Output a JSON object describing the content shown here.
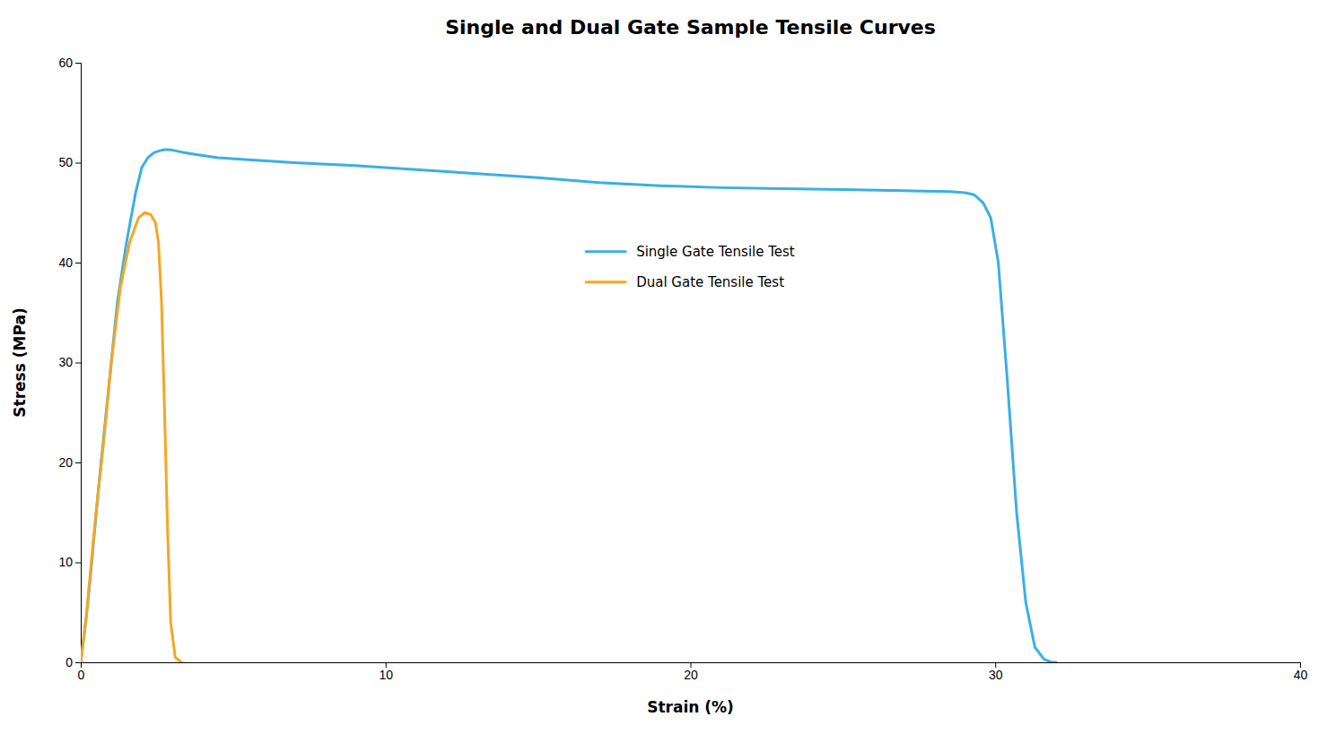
{
  "chart_data": {
    "type": "line",
    "title": "Single and Dual Gate Sample Tensile Curves",
    "xlabel": "Strain (%)",
    "ylabel": "Stress (MPa)",
    "xlim": [
      0,
      40
    ],
    "ylim": [
      0,
      60
    ],
    "xticks": [
      0,
      10,
      20,
      30,
      40
    ],
    "yticks": [
      0,
      10,
      20,
      30,
      40,
      50,
      60
    ],
    "grid": false,
    "legend": "center",
    "series": [
      {
        "name": "Single Gate Tensile Test",
        "color": "#3AAFE4",
        "x": [
          0.0,
          0.08,
          0.18,
          0.3,
          0.45,
          0.6,
          0.8,
          1.0,
          1.2,
          1.5,
          1.8,
          2.0,
          2.2,
          2.4,
          2.6,
          2.75,
          2.9,
          3.1,
          3.4,
          3.8,
          4.5,
          5.5,
          7.0,
          9.0,
          11.0,
          13.0,
          15.0,
          17.0,
          19.0,
          21.0,
          23.0,
          25.0,
          27.0,
          28.5,
          29.0,
          29.3,
          29.6,
          29.85,
          30.1,
          30.4,
          30.7,
          31.0,
          31.3,
          31.6,
          31.85,
          32.0
        ],
        "values": [
          0.0,
          2.0,
          4.5,
          8.0,
          13.0,
          18.0,
          24.0,
          30.0,
          36.0,
          42.0,
          47.0,
          49.5,
          50.5,
          51.0,
          51.2,
          51.3,
          51.3,
          51.2,
          51.0,
          50.8,
          50.5,
          50.3,
          50.0,
          49.7,
          49.3,
          48.9,
          48.5,
          48.0,
          47.7,
          47.5,
          47.4,
          47.3,
          47.2,
          47.1,
          47.0,
          46.8,
          46.0,
          44.5,
          40.0,
          28.0,
          15.0,
          6.0,
          1.5,
          0.3,
          0.0,
          0.0
        ]
      },
      {
        "name": "Dual Gate Tensile Test",
        "color": "#F5A623",
        "x": [
          0.0,
          0.08,
          0.18,
          0.3,
          0.5,
          0.75,
          1.0,
          1.3,
          1.6,
          1.9,
          2.1,
          2.3,
          2.45,
          2.55,
          2.65,
          2.75,
          2.85,
          2.95,
          3.1,
          3.3
        ],
        "values": [
          0.0,
          2.0,
          4.5,
          8.5,
          15.0,
          22.0,
          30.0,
          37.5,
          42.0,
          44.5,
          45.0,
          44.8,
          44.0,
          42.0,
          36.0,
          25.0,
          13.0,
          4.0,
          0.5,
          0.0
        ]
      }
    ]
  }
}
